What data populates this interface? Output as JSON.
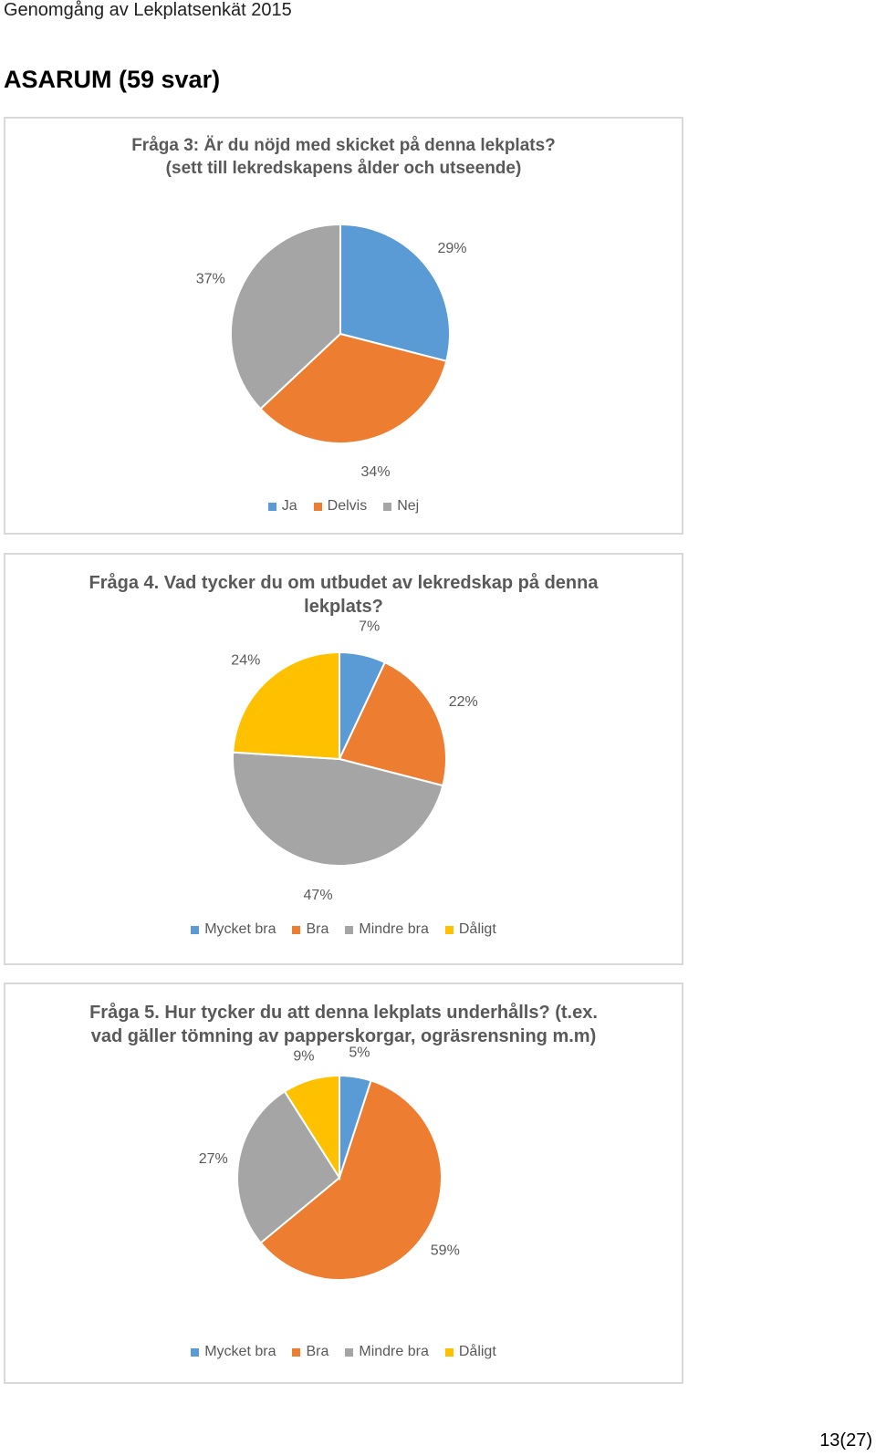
{
  "header": {
    "text": "Genomgång av Lekplatsenkät 2015"
  },
  "section": {
    "title": "ASARUM (59 svar)"
  },
  "charts": [
    {
      "title_lines": [
        "Fråga 3: Är du nöjd med skicket på denna lekplats?",
        "(sett till lekredskapens ålder och utseende)"
      ],
      "legend": [
        "Ja",
        "Delvis",
        "Nej"
      ],
      "labels": [
        "29%",
        "34%",
        "37%"
      ]
    },
    {
      "title_lines": [
        "Fråga 4. Vad tycker du om utbudet av lekredskap på denna",
        "lekplats?"
      ],
      "legend": [
        "Mycket bra",
        "Bra",
        "Mindre bra",
        "Dåligt"
      ],
      "labels": [
        "7%",
        "22%",
        "47%",
        "24%"
      ]
    },
    {
      "title_lines": [
        "Fråga 5. Hur tycker du att denna lekplats underhålls? (t.ex.",
        "vad gäller tömning av papperskorgar, ogräsrensning m.m)"
      ],
      "legend": [
        "Mycket bra",
        "Bra",
        "Mindre bra",
        "Dåligt"
      ],
      "labels": [
        "5%",
        "59%",
        "27%",
        "9%"
      ]
    }
  ],
  "chart_data": [
    {
      "type": "pie",
      "title": "Fråga 3: Är du nöjd med skicket på denna lekplats? (sett till lekredskapens ålder och utseende)",
      "categories": [
        "Ja",
        "Delvis",
        "Nej"
      ],
      "values": [
        29,
        34,
        37
      ],
      "colors": [
        "#5b9bd5",
        "#ed7d31",
        "#a5a5a5"
      ],
      "legend": "bottom"
    },
    {
      "type": "pie",
      "title": "Fråga 4. Vad tycker du om utbudet av lekredskap på denna lekplats?",
      "categories": [
        "Mycket bra",
        "Bra",
        "Mindre bra",
        "Dåligt"
      ],
      "values": [
        7,
        22,
        47,
        24
      ],
      "colors": [
        "#5b9bd5",
        "#ed7d31",
        "#a5a5a5",
        "#ffc000"
      ],
      "legend": "bottom"
    },
    {
      "type": "pie",
      "title": "Fråga 5. Hur tycker du att denna lekplats underhålls? (t.ex. vad gäller tömning av papperskorgar, ogräsrensning m.m)",
      "categories": [
        "Mycket bra",
        "Bra",
        "Mindre bra",
        "Dåligt"
      ],
      "values": [
        5,
        59,
        27,
        9
      ],
      "colors": [
        "#5b9bd5",
        "#ed7d31",
        "#a5a5a5",
        "#ffc000"
      ],
      "legend": "bottom"
    }
  ],
  "footer": {
    "page_number": "13(27)"
  }
}
